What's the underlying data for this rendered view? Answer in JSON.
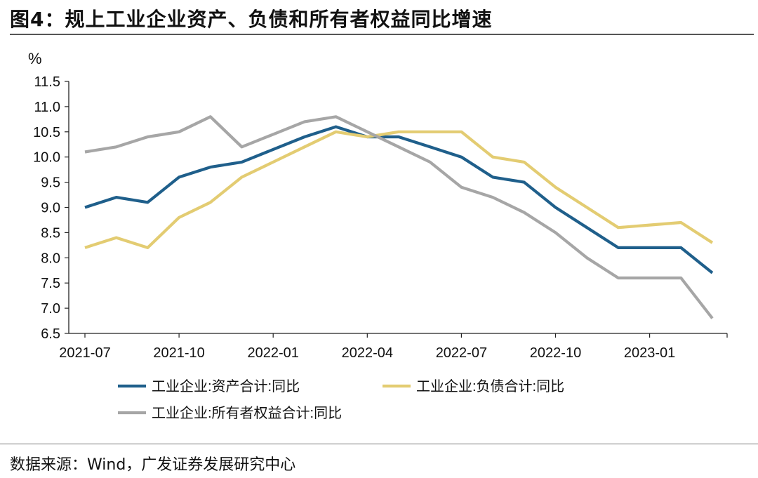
{
  "title": "图4：规上工业企业资产、负债和所有者权益同比增速",
  "source": "数据来源：Wind，广发证券发展研究中心",
  "chart_data": {
    "type": "line",
    "ylabel": "%",
    "ylim": [
      6.5,
      11.5
    ],
    "yticks": [
      "11.5",
      "11.0",
      "10.5",
      "10.0",
      "9.5",
      "9.0",
      "8.5",
      "8.0",
      "7.5",
      "7.0",
      "6.5"
    ],
    "xticks": [
      "2021-07",
      "2021-10",
      "2022-01",
      "2022-04",
      "2022-07",
      "2022-10",
      "2023-01"
    ],
    "x": [
      "2021-07",
      "2021-08",
      "2021-09",
      "2021-10",
      "2021-11",
      "2021-12",
      "2022-01",
      "2022-02",
      "2022-03",
      "2022-04",
      "2022-05",
      "2022-06",
      "2022-07",
      "2022-08",
      "2022-09",
      "2022-10",
      "2022-11",
      "2022-12",
      "2023-01",
      "2023-02",
      "2023-03"
    ],
    "grid": false,
    "legend_position": "bottom",
    "series": [
      {
        "name": "工业企业:资产合计:同比",
        "color": "#1f5f8b",
        "values": [
          9.0,
          9.2,
          9.1,
          9.6,
          9.8,
          9.9,
          10.15,
          10.4,
          10.6,
          10.4,
          10.4,
          10.2,
          10.0,
          9.6,
          9.5,
          9.0,
          8.6,
          8.2,
          8.2,
          8.2,
          7.7
        ]
      },
      {
        "name": "工业企业:负债合计:同比",
        "color": "#e3cc72",
        "values": [
          8.2,
          8.4,
          8.2,
          8.8,
          9.1,
          9.6,
          9.9,
          10.2,
          10.5,
          10.4,
          10.5,
          10.5,
          10.5,
          10.0,
          9.9,
          9.4,
          9.0,
          8.6,
          8.65,
          8.7,
          8.3
        ]
      },
      {
        "name": "工业企业:所有者权益合计:同比",
        "color": "#a6a6a6",
        "values": [
          10.1,
          10.2,
          10.4,
          10.5,
          10.8,
          10.2,
          10.45,
          10.7,
          10.8,
          10.5,
          10.2,
          9.9,
          9.4,
          9.2,
          8.9,
          8.5,
          8.0,
          7.6,
          7.6,
          7.6,
          6.8
        ]
      }
    ]
  }
}
